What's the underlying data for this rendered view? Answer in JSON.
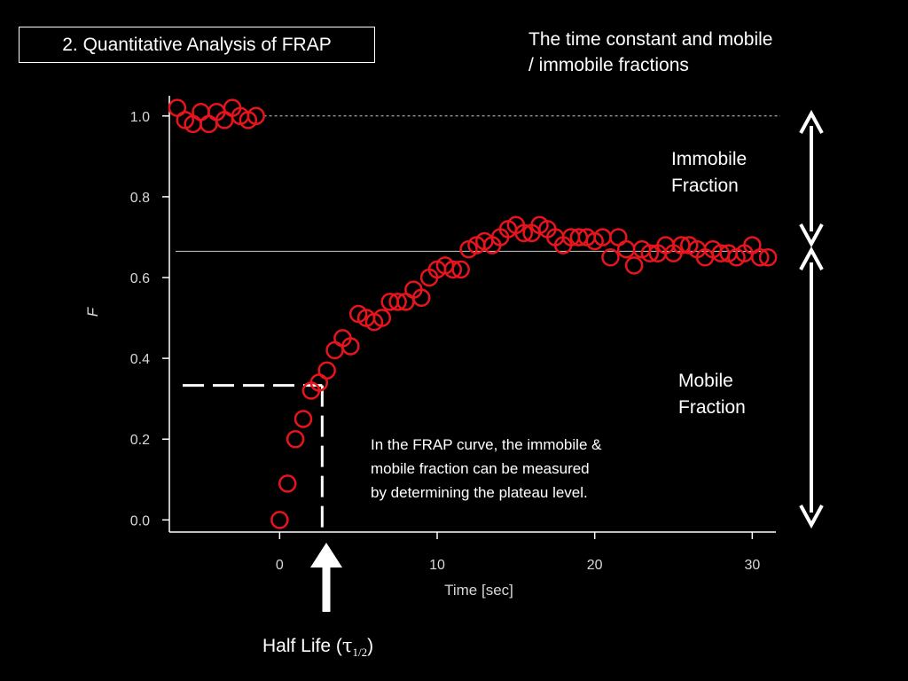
{
  "slide": {
    "title": "2. Quantitative Analysis of FRAP",
    "top_note_line1": "The time constant and mobile",
    "top_note_line2": "/ immobile fractions",
    "immobile_line1": "Immobile",
    "immobile_line2": "Fraction",
    "mobile_line1": "Mobile",
    "mobile_line2": "Fraction",
    "body_line1": "In the FRAP curve, the immobile &",
    "body_line2": "mobile fraction can be measured",
    "body_line3": "by determining the plateau level.",
    "half_life_prefix": "Half Life (",
    "half_life_tau": "τ",
    "half_life_sub": "1/2",
    "half_life_suffix": ")"
  },
  "colors": {
    "background": "#000000",
    "points": "#e8141c",
    "axes": "#ffffff",
    "ticks_text": "#d8d8d8"
  },
  "chart_data": {
    "type": "scatter",
    "xlabel": "Time [sec]",
    "ylabel": "F",
    "xlim": [
      -7,
      31.5
    ],
    "ylim": [
      -0.03,
      1.05
    ],
    "xticks": [
      "0",
      "10",
      "20",
      "30"
    ],
    "yticks": [
      "0.0",
      "0.2",
      "0.4",
      "0.6",
      "0.8",
      "1.0"
    ],
    "x": [
      -6.5,
      -6.0,
      -5.5,
      -5.0,
      -4.5,
      -4.0,
      -3.5,
      -3.0,
      -2.5,
      -2.0,
      -1.5,
      0.0,
      0.5,
      1.0,
      1.5,
      2.0,
      2.5,
      3.0,
      3.5,
      4.0,
      4.5,
      5.0,
      5.5,
      6.0,
      6.5,
      7.0,
      7.5,
      8.0,
      8.5,
      9.0,
      9.5,
      10.0,
      10.5,
      11.0,
      11.5,
      12.0,
      12.5,
      13.0,
      13.5,
      14.0,
      14.5,
      15.0,
      15.5,
      16.0,
      16.5,
      17.0,
      17.5,
      18.0,
      18.5,
      19.0,
      19.5,
      20.0,
      20.5,
      21.0,
      21.5,
      22.0,
      22.5,
      23.0,
      23.5,
      24.0,
      24.5,
      25.0,
      25.5,
      26.0,
      26.5,
      27.0,
      27.5,
      28.0,
      28.5,
      29.0,
      29.5,
      30.0,
      30.5,
      31.0
    ],
    "y": [
      1.02,
      0.99,
      0.98,
      1.01,
      0.98,
      1.01,
      0.99,
      1.02,
      1.0,
      0.99,
      1.0,
      0.0,
      0.09,
      0.2,
      0.25,
      0.32,
      0.34,
      0.37,
      0.42,
      0.45,
      0.43,
      0.51,
      0.5,
      0.49,
      0.5,
      0.54,
      0.54,
      0.54,
      0.57,
      0.55,
      0.6,
      0.62,
      0.63,
      0.62,
      0.62,
      0.67,
      0.68,
      0.69,
      0.68,
      0.7,
      0.72,
      0.73,
      0.71,
      0.71,
      0.73,
      0.72,
      0.7,
      0.68,
      0.7,
      0.7,
      0.7,
      0.69,
      0.7,
      0.65,
      0.7,
      0.67,
      0.63,
      0.67,
      0.66,
      0.66,
      0.68,
      0.66,
      0.68,
      0.68,
      0.67,
      0.65,
      0.67,
      0.66,
      0.66,
      0.65,
      0.66,
      0.68,
      0.65,
      0.65
    ],
    "reference_lines": {
      "initial_level": 1.0,
      "plateau_level": 0.665,
      "half_recovery_level": 0.333,
      "half_life_time": 2.7
    }
  }
}
